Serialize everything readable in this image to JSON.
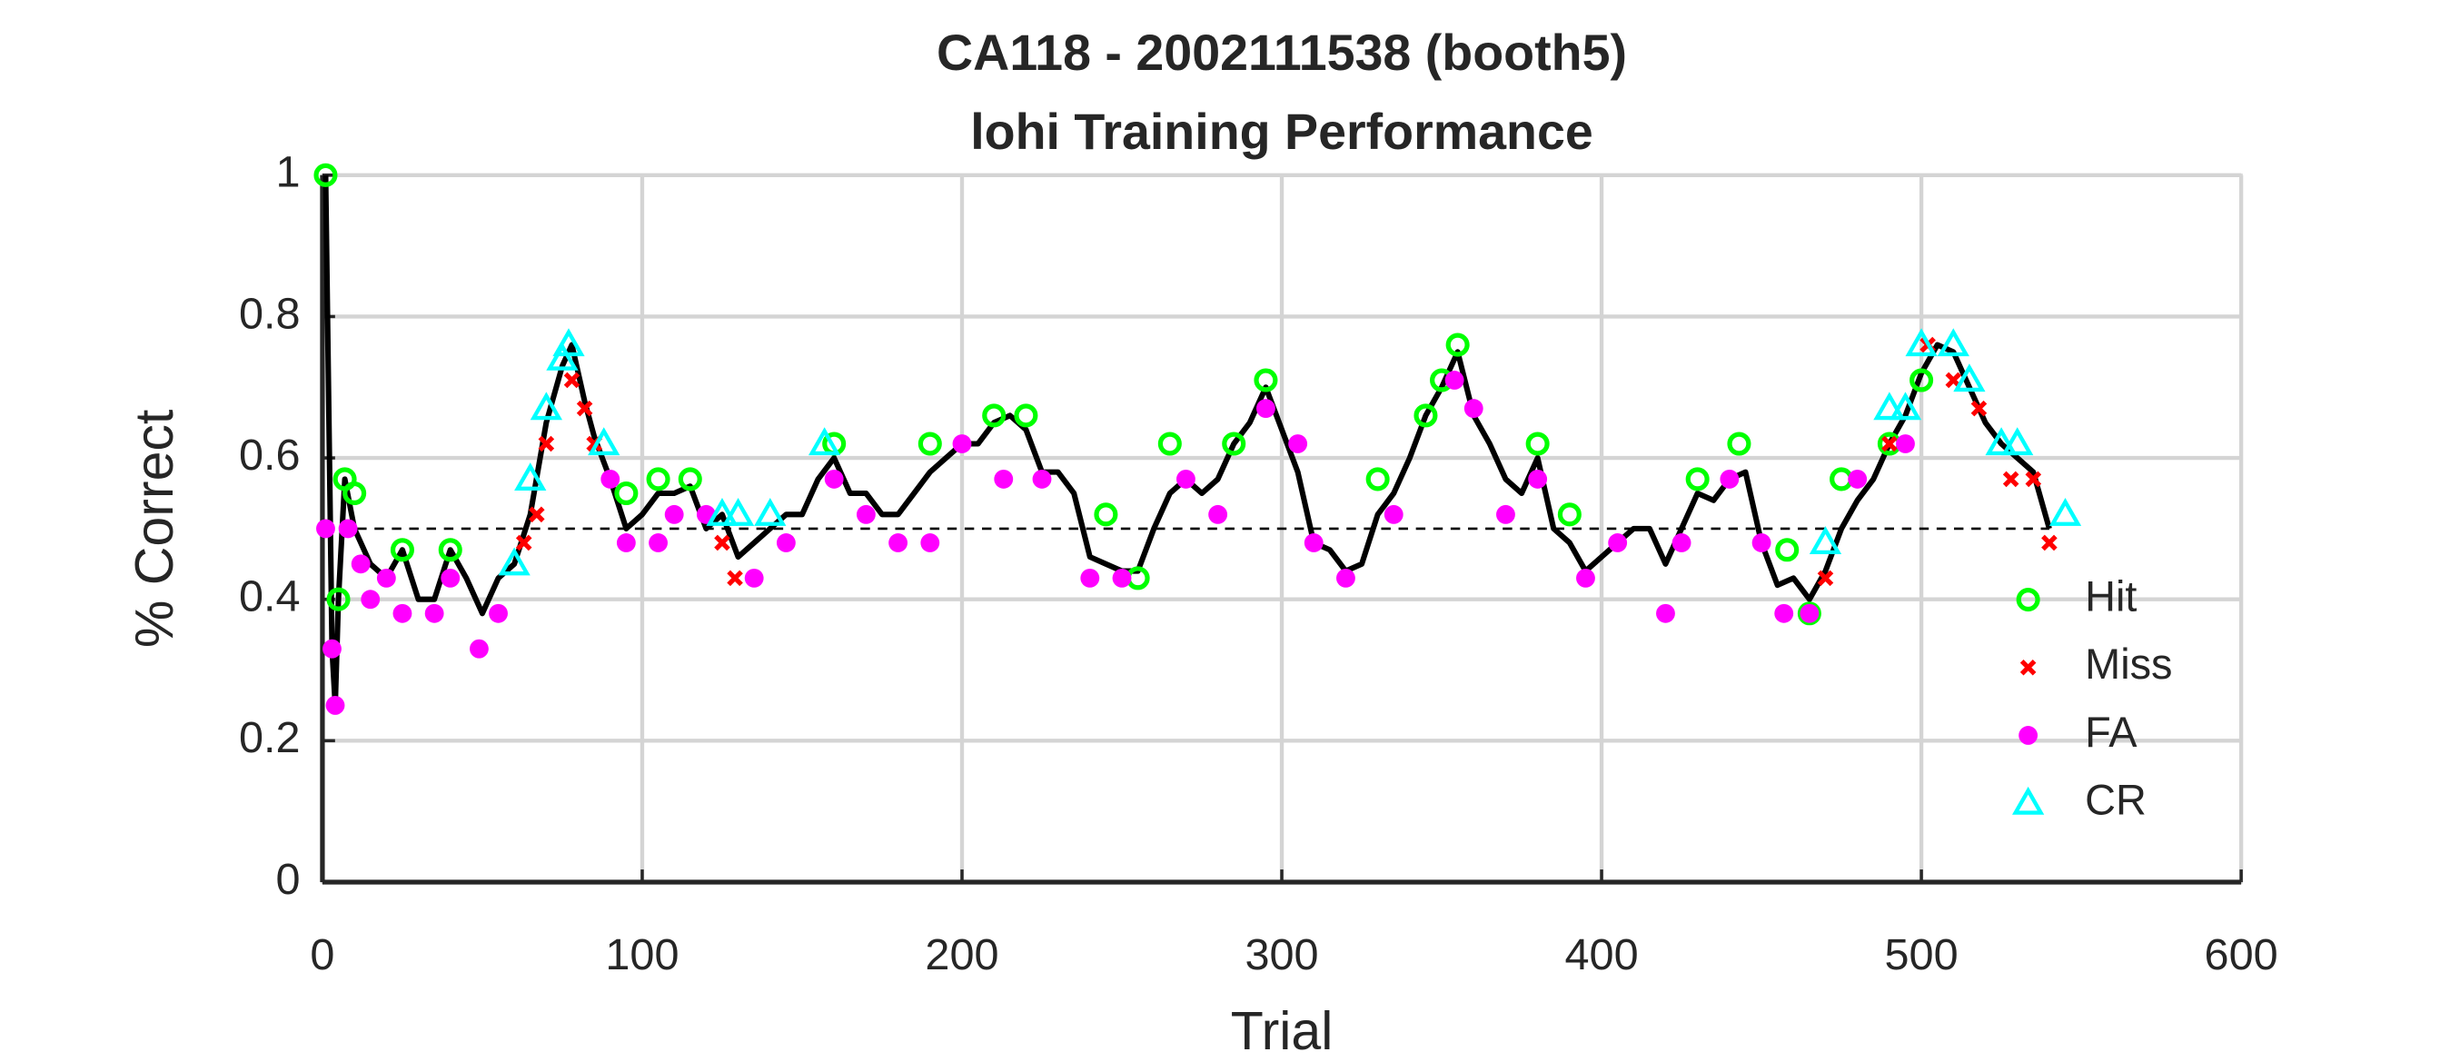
{
  "chart_data": {
    "type": "line",
    "title": [
      "CA118 - 2002111538 (booth5)",
      "lohi Training Performance"
    ],
    "xlabel": "Trial",
    "ylabel": "% Correct",
    "xlim": [
      0,
      600
    ],
    "xticks": [
      0,
      100,
      200,
      300,
      400,
      500,
      600
    ],
    "ylim": [
      0,
      1
    ],
    "yticks": [
      0,
      0.2,
      0.4,
      0.6,
      0.8,
      1
    ],
    "grid": true,
    "legend": "east",
    "reference_line": {
      "y": 0.5,
      "x": [
        0,
        540
      ],
      "color": "#000000"
    },
    "performance": {
      "color": "#000000",
      "x": [
        1,
        3,
        4,
        5,
        7,
        10,
        15,
        20,
        25,
        30,
        35,
        40,
        45,
        50,
        55,
        60,
        65,
        70,
        75,
        78,
        82,
        85,
        90,
        95,
        100,
        105,
        110,
        115,
        120,
        125,
        130,
        135,
        140,
        145,
        150,
        155,
        160,
        165,
        170,
        175,
        180,
        185,
        190,
        195,
        200,
        205,
        210,
        215,
        220,
        225,
        230,
        235,
        240,
        245,
        250,
        255,
        260,
        265,
        270,
        275,
        280,
        285,
        290,
        295,
        300,
        305,
        310,
        315,
        320,
        325,
        330,
        335,
        340,
        345,
        350,
        355,
        360,
        365,
        370,
        375,
        380,
        385,
        390,
        395,
        400,
        405,
        410,
        415,
        420,
        425,
        430,
        435,
        440,
        445,
        450,
        455,
        460,
        465,
        470,
        475,
        480,
        485,
        490,
        495,
        500,
        505,
        510,
        515,
        520,
        525,
        530,
        535,
        540
      ],
      "values": [
        1.0,
        0.33,
        0.25,
        0.4,
        0.57,
        0.5,
        0.45,
        0.43,
        0.47,
        0.4,
        0.4,
        0.47,
        0.43,
        0.38,
        0.43,
        0.45,
        0.52,
        0.65,
        0.73,
        0.76,
        0.68,
        0.63,
        0.57,
        0.5,
        0.52,
        0.55,
        0.55,
        0.56,
        0.5,
        0.52,
        0.46,
        0.48,
        0.5,
        0.52,
        0.52,
        0.57,
        0.6,
        0.55,
        0.55,
        0.52,
        0.52,
        0.55,
        0.58,
        0.6,
        0.62,
        0.62,
        0.65,
        0.66,
        0.64,
        0.58,
        0.58,
        0.55,
        0.46,
        0.45,
        0.44,
        0.44,
        0.5,
        0.55,
        0.57,
        0.55,
        0.57,
        0.62,
        0.65,
        0.7,
        0.64,
        0.58,
        0.48,
        0.47,
        0.44,
        0.45,
        0.52,
        0.55,
        0.6,
        0.66,
        0.7,
        0.75,
        0.66,
        0.62,
        0.57,
        0.55,
        0.6,
        0.5,
        0.48,
        0.44,
        0.46,
        0.48,
        0.5,
        0.5,
        0.45,
        0.5,
        0.55,
        0.54,
        0.57,
        0.58,
        0.48,
        0.42,
        0.43,
        0.4,
        0.44,
        0.5,
        0.54,
        0.57,
        0.62,
        0.66,
        0.72,
        0.76,
        0.75,
        0.7,
        0.65,
        0.62,
        0.6,
        0.58,
        0.5
      ]
    },
    "series": [
      {
        "name": "Hit",
        "color": "#00ff00",
        "marker": "circle",
        "x": [
          1,
          5,
          7,
          10,
          25,
          40,
          95,
          105,
          115,
          160,
          190,
          210,
          220,
          245,
          255,
          265,
          285,
          295,
          330,
          345,
          350,
          355,
          380,
          390,
          430,
          443,
          458,
          465,
          475,
          490,
          500
        ],
        "values": [
          1.0,
          0.4,
          0.57,
          0.55,
          0.47,
          0.47,
          0.55,
          0.57,
          0.57,
          0.62,
          0.62,
          0.66,
          0.66,
          0.52,
          0.43,
          0.62,
          0.62,
          0.71,
          0.57,
          0.66,
          0.71,
          0.76,
          0.62,
          0.52,
          0.57,
          0.62,
          0.47,
          0.38,
          0.57,
          0.62,
          0.71
        ]
      },
      {
        "name": "Miss",
        "color": "#ff0000",
        "marker": "x",
        "x": [
          63,
          67,
          70,
          78,
          82,
          85,
          125,
          129,
          470,
          490,
          502,
          510,
          518,
          528,
          535,
          540
        ],
        "values": [
          0.48,
          0.52,
          0.62,
          0.71,
          0.67,
          0.62,
          0.48,
          0.43,
          0.43,
          0.62,
          0.76,
          0.71,
          0.67,
          0.57,
          0.57,
          0.48
        ]
      },
      {
        "name": "FA",
        "color": "#ff00ff",
        "marker": "dot",
        "x": [
          1,
          3,
          4,
          8,
          12,
          15,
          20,
          25,
          35,
          40,
          49,
          55,
          90,
          95,
          105,
          110,
          120,
          135,
          145,
          160,
          170,
          180,
          190,
          200,
          213,
          225,
          240,
          250,
          270,
          280,
          295,
          305,
          310,
          320,
          335,
          354,
          360,
          370,
          380,
          395,
          405,
          420,
          425,
          440,
          450,
          457,
          465,
          480,
          495
        ],
        "values": [
          0.5,
          0.33,
          0.25,
          0.5,
          0.45,
          0.4,
          0.43,
          0.38,
          0.38,
          0.43,
          0.33,
          0.38,
          0.57,
          0.48,
          0.48,
          0.52,
          0.52,
          0.43,
          0.48,
          0.57,
          0.52,
          0.48,
          0.48,
          0.62,
          0.57,
          0.57,
          0.43,
          0.43,
          0.57,
          0.52,
          0.67,
          0.62,
          0.48,
          0.43,
          0.52,
          0.71,
          0.67,
          0.52,
          0.57,
          0.43,
          0.48,
          0.38,
          0.48,
          0.57,
          0.48,
          0.38,
          0.38,
          0.57,
          0.62
        ]
      },
      {
        "name": "CR",
        "color": "#00ffff",
        "marker": "triangle",
        "x": [
          60,
          65,
          70,
          75,
          77,
          88,
          125,
          130,
          140,
          157,
          470,
          490,
          495,
          500,
          510,
          515,
          525,
          530,
          545
        ],
        "values": [
          0.45,
          0.57,
          0.67,
          0.74,
          0.76,
          0.62,
          0.52,
          0.52,
          0.52,
          0.62,
          0.48,
          0.67,
          0.67,
          0.76,
          0.76,
          0.71,
          0.62,
          0.62,
          0.52
        ]
      }
    ]
  }
}
